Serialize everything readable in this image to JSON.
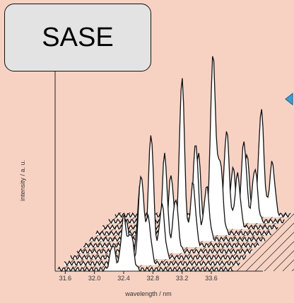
{
  "label_box": {
    "text": "SASE"
  },
  "chart_data": {
    "type": "line",
    "style": "waterfall",
    "xlabel": "wavelength / nm",
    "ylabel": "intensity / a. u.",
    "xticks": [
      "31.6",
      "32.0",
      "32.4",
      "32.8",
      "33.2",
      "33.6"
    ],
    "x_range": [
      31.5,
      33.9
    ],
    "n_shots": 10,
    "colors": {
      "line": "#111111",
      "fill": "#ffffff",
      "background": "#f7d2c3",
      "hatch": "#222222",
      "arrow": "#3aa0d8"
    },
    "series": [
      {
        "peaks": [
          [
            32.25,
            0.14
          ],
          [
            32.4,
            0.3
          ],
          [
            32.5,
            0.2
          ]
        ]
      },
      {
        "peaks": [
          [
            32.35,
            0.25
          ],
          [
            32.55,
            0.5
          ],
          [
            32.65,
            0.25
          ]
        ]
      },
      {
        "peaks": [
          [
            32.45,
            0.4
          ],
          [
            32.6,
            0.7
          ],
          [
            32.75,
            0.3
          ]
        ]
      },
      {
        "peaks": [
          [
            32.5,
            0.35
          ],
          [
            32.7,
            0.55
          ],
          [
            32.85,
            0.3
          ]
        ]
      },
      {
        "peaks": [
          [
            32.7,
            0.4
          ],
          [
            32.85,
            0.95
          ],
          [
            33.0,
            0.35
          ]
        ]
      },
      {
        "peaks": [
          [
            32.75,
            0.3
          ],
          [
            32.95,
            0.55
          ],
          [
            33.1,
            0.3
          ]
        ]
      },
      {
        "peaks": [
          [
            32.9,
            0.45
          ],
          [
            33.1,
            1.0
          ],
          [
            33.2,
            0.4
          ]
        ]
      },
      {
        "peaks": [
          [
            33.05,
            0.35
          ],
          [
            33.2,
            0.55
          ],
          [
            33.35,
            0.3
          ]
        ]
      },
      {
        "peaks": [
          [
            33.2,
            0.3
          ],
          [
            33.35,
            0.45
          ],
          [
            33.5,
            0.3
          ]
        ]
      },
      {
        "peaks": [
          [
            33.3,
            0.35
          ],
          [
            33.5,
            0.6
          ],
          [
            33.65,
            0.3
          ]
        ]
      }
    ]
  }
}
